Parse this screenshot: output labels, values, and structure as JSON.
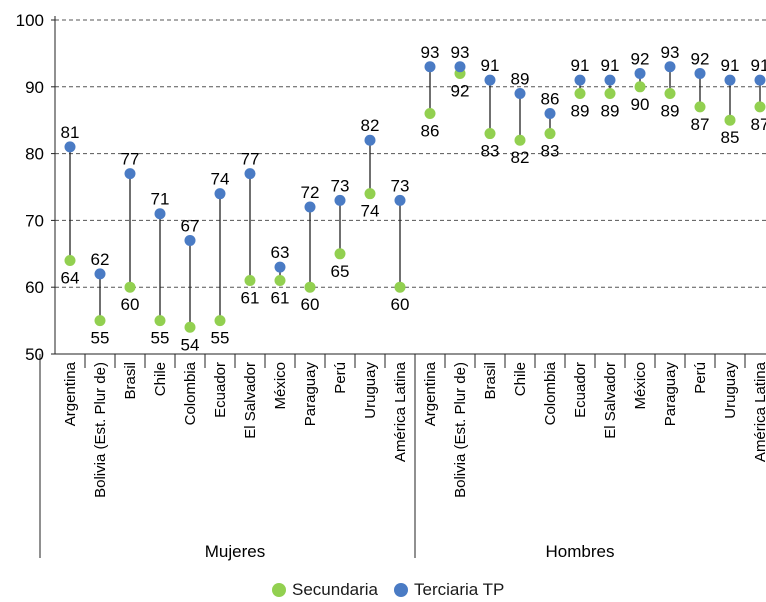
{
  "chart_data": {
    "type": "scatter",
    "ylim": [
      50,
      100
    ],
    "yticks": [
      50,
      60,
      70,
      80,
      90,
      100
    ],
    "grid": true,
    "groups": [
      {
        "label": "Mujeres",
        "categories": [
          "Argentina",
          "Bolivia (Est. Plur de)",
          "Brasil",
          "Chile",
          "Colombia",
          "Ecuador",
          "El Salvador",
          "México",
          "Paraguay",
          "Perú",
          "Uruguay",
          "América Latina"
        ],
        "secundaria": [
          64,
          55,
          60,
          55,
          54,
          55,
          61,
          61,
          60,
          65,
          74,
          60
        ],
        "terciaria": [
          81,
          62,
          77,
          71,
          67,
          74,
          77,
          63,
          72,
          73,
          82,
          73
        ]
      },
      {
        "label": "Hombres",
        "categories": [
          "Argentina",
          "Bolivia (Est. Plur de)",
          "Brasil",
          "Chile",
          "Colombia",
          "Ecuador",
          "El Salvador",
          "México",
          "Paraguay",
          "Perú",
          "Uruguay",
          "América Latina"
        ],
        "secundaria": [
          86,
          92,
          83,
          82,
          83,
          89,
          89,
          90,
          89,
          87,
          85,
          87
        ],
        "terciaria": [
          93,
          93,
          91,
          89,
          86,
          91,
          91,
          92,
          93,
          92,
          91,
          91
        ]
      }
    ],
    "series": [
      {
        "name": "Secundaria",
        "color": "#92d050"
      },
      {
        "name": "Terciaria TP",
        "color": "#4a7bc4"
      }
    ]
  }
}
